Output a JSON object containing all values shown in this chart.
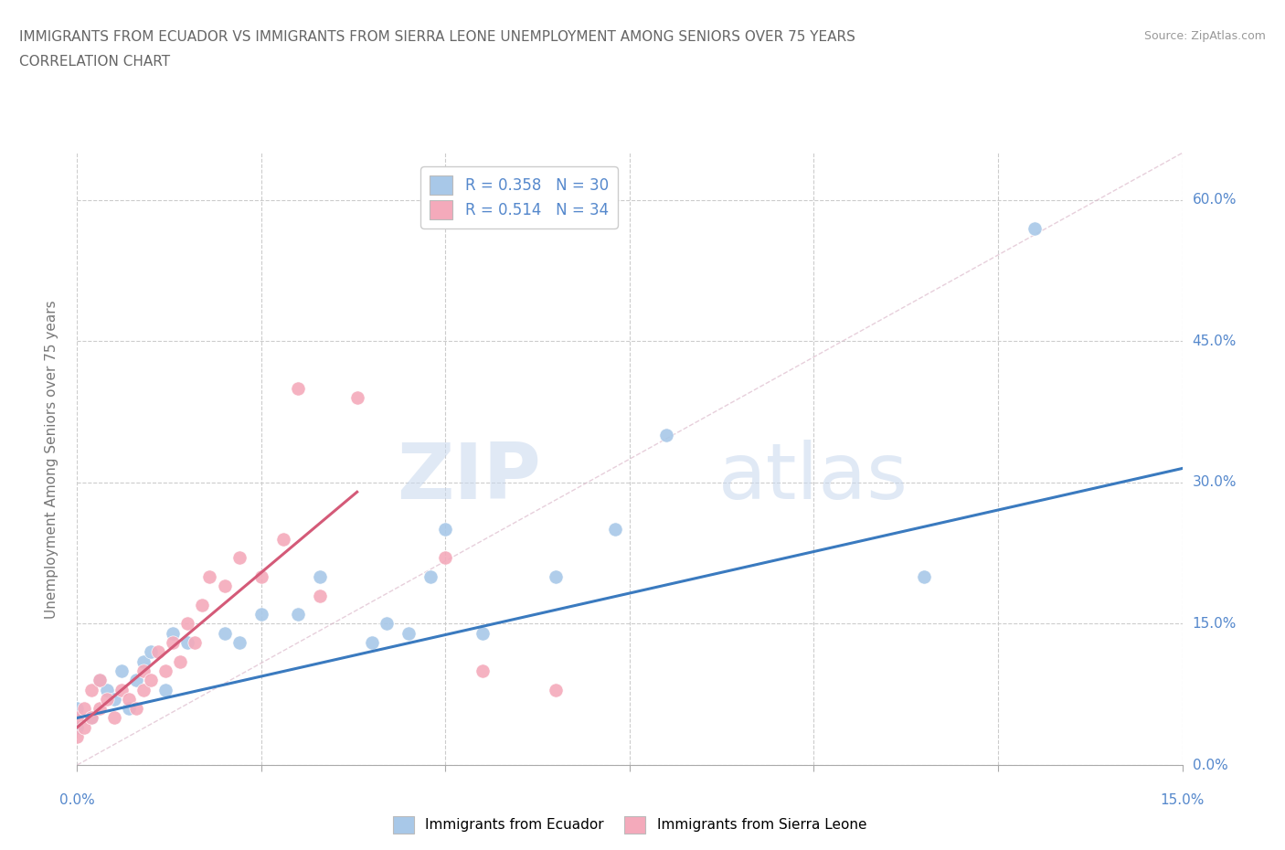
{
  "title_line1": "IMMIGRANTS FROM ECUADOR VS IMMIGRANTS FROM SIERRA LEONE UNEMPLOYMENT AMONG SENIORS OVER 75 YEARS",
  "title_line2": "CORRELATION CHART",
  "source": "Source: ZipAtlas.com",
  "watermark": "ZIPatlas",
  "R_ecuador": 0.358,
  "N_ecuador": 30,
  "R_sierra_leone": 0.514,
  "N_sierra_leone": 34,
  "ecuador_color": "#a8c8e8",
  "sierra_leone_color": "#f4aabb",
  "ecuador_line_color": "#3a7abf",
  "sierra_leone_line_color": "#d45a78",
  "diagonal_color": "#cccccc",
  "label_color": "#5588cc",
  "title_color": "#666666",
  "ecuador_scatter_x": [
    0.0,
    0.0,
    0.002,
    0.003,
    0.004,
    0.005,
    0.006,
    0.007,
    0.008,
    0.009,
    0.01,
    0.012,
    0.013,
    0.015,
    0.02,
    0.022,
    0.025,
    0.03,
    0.033,
    0.04,
    0.042,
    0.045,
    0.048,
    0.05,
    0.055,
    0.065,
    0.073,
    0.08,
    0.115,
    0.13
  ],
  "ecuador_scatter_y": [
    0.04,
    0.06,
    0.05,
    0.09,
    0.08,
    0.07,
    0.1,
    0.06,
    0.09,
    0.11,
    0.12,
    0.08,
    0.14,
    0.13,
    0.14,
    0.13,
    0.16,
    0.16,
    0.2,
    0.13,
    0.15,
    0.14,
    0.2,
    0.25,
    0.14,
    0.2,
    0.25,
    0.35,
    0.2,
    0.57
  ],
  "sierra_leone_scatter_x": [
    0.0,
    0.0,
    0.001,
    0.001,
    0.002,
    0.002,
    0.003,
    0.003,
    0.004,
    0.005,
    0.006,
    0.007,
    0.008,
    0.009,
    0.009,
    0.01,
    0.011,
    0.012,
    0.013,
    0.014,
    0.015,
    0.016,
    0.017,
    0.018,
    0.02,
    0.022,
    0.025,
    0.028,
    0.03,
    0.033,
    0.038,
    0.05,
    0.055,
    0.065
  ],
  "sierra_leone_scatter_y": [
    0.03,
    0.05,
    0.04,
    0.06,
    0.05,
    0.08,
    0.06,
    0.09,
    0.07,
    0.05,
    0.08,
    0.07,
    0.06,
    0.08,
    0.1,
    0.09,
    0.12,
    0.1,
    0.13,
    0.11,
    0.15,
    0.13,
    0.17,
    0.2,
    0.19,
    0.22,
    0.2,
    0.24,
    0.4,
    0.18,
    0.39,
    0.22,
    0.1,
    0.08
  ],
  "xmin": 0.0,
  "xmax": 0.15,
  "ymin": 0.0,
  "ymax": 0.65,
  "yticks": [
    0.0,
    0.15,
    0.3,
    0.45,
    0.6
  ],
  "ytick_labels": [
    "0.0%",
    "15.0%",
    "30.0%",
    "45.0%",
    "60.0%"
  ],
  "xtick_labels": [
    "0.0%",
    "",
    "",
    "",
    "",
    "",
    "15.0%"
  ],
  "xticks": [
    0.0,
    0.025,
    0.05,
    0.075,
    0.1,
    0.125,
    0.15
  ],
  "bg_color": "#ffffff",
  "ecu_line_x0": 0.0,
  "ecu_line_x1": 0.15,
  "ecu_line_y0": 0.05,
  "ecu_line_y1": 0.315,
  "sle_line_x0": 0.0,
  "sle_line_x1": 0.038,
  "sle_line_y0": 0.04,
  "sle_line_y1": 0.29
}
